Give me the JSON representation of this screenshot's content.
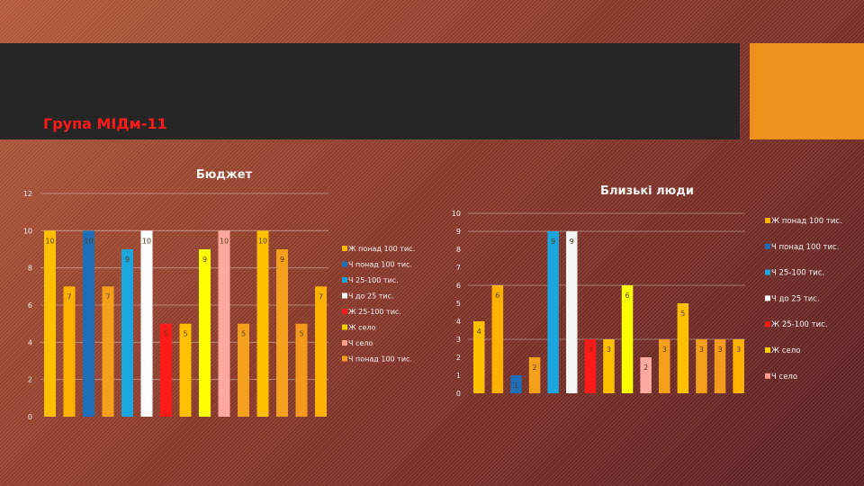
{
  "slide": {
    "title": "Група МІДм-11",
    "colors": {
      "header_bar": "#262626",
      "accent": "#f0901c",
      "title": "#ff1a1a"
    }
  },
  "chart_data": [
    {
      "type": "bar",
      "title": "Бюджет",
      "ylim": [
        0,
        12
      ],
      "yticks": [
        0,
        2,
        4,
        6,
        8,
        10,
        12
      ],
      "grid": true,
      "legend_position": "right",
      "legend": [
        {
          "label": "Ж понад 100 тис.",
          "color": "#f7b500"
        },
        {
          "label": "Ч понад 100 тис.",
          "color": "#1f6fb8"
        },
        {
          "label": "Ч 25-100 тис.",
          "color": "#1aa7e0"
        },
        {
          "label": "Ч до 25 тис.",
          "color": "#ffffff"
        },
        {
          "label": "Ж 25-100 тис.",
          "color": "#ff1a1a"
        },
        {
          "label": "Ж село",
          "color": "#f7d000"
        },
        {
          "label": "Ч село",
          "color": "#ff9e8a"
        },
        {
          "label": "Ч понад 100 тис.",
          "color": "#f59a1c"
        }
      ],
      "values": [
        10,
        7,
        10,
        7,
        9,
        10,
        5,
        5,
        9,
        10,
        5,
        10,
        9,
        5,
        7
      ],
      "colors": [
        "#ffc000",
        "#ffb300",
        "#1f6fb8",
        "#f5a01c",
        "#1aa7e0",
        "#ffffff",
        "#ff1a1a",
        "#ffc000",
        "#ffff00",
        "#ffa8a0",
        "#f5a01c",
        "#ffc000",
        "#f5a01c",
        "#f59a1c",
        "#ffb300"
      ]
    },
    {
      "type": "bar",
      "title": "Близькі люди",
      "ylim": [
        0,
        10
      ],
      "yticks": [
        0,
        1,
        2,
        3,
        4,
        5,
        6,
        7,
        8,
        9,
        10
      ],
      "grid": true,
      "legend_position": "right",
      "legend": [
        {
          "label": "Ж понад 100 тис.",
          "color": "#f7b500"
        },
        {
          "label": "Ч понад 100 тис.",
          "color": "#1f6fb8"
        },
        {
          "label": "Ч 25-100 тис.",
          "color": "#1aa7e0"
        },
        {
          "label": "Ч до 25 тис.",
          "color": "#ffffff"
        },
        {
          "label": "Ж 25-100 тис.",
          "color": "#ff1a1a"
        },
        {
          "label": "Ж село",
          "color": "#f7d000"
        },
        {
          "label": "Ч село",
          "color": "#ff9e8a"
        }
      ],
      "values": [
        4,
        6,
        1,
        2,
        9,
        9,
        3,
        3,
        6,
        2,
        3,
        5,
        3,
        3,
        3
      ],
      "colors": [
        "#ffc000",
        "#ffb300",
        "#1f6fb8",
        "#f5a01c",
        "#1aa7e0",
        "#f5f5f5",
        "#ff1a1a",
        "#ffc000",
        "#ffff00",
        "#ffa8a0",
        "#f5a01c",
        "#ffc000",
        "#f5a01c",
        "#f59a1c",
        "#ffb300"
      ]
    }
  ]
}
